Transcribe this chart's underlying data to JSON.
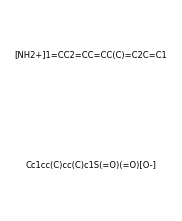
{
  "title": "",
  "background_color": "#ffffff",
  "figsize": [
    1.82,
    2.21
  ],
  "dpi": 100,
  "smiles_top": "[NH2+]1=CC2=CC=CC(C)=C2C=C1",
  "smiles_bottom": "Cc1cc(C)cc(C)c1S(=O)(=O)[O-]",
  "top_label": "",
  "bottom_label": ""
}
